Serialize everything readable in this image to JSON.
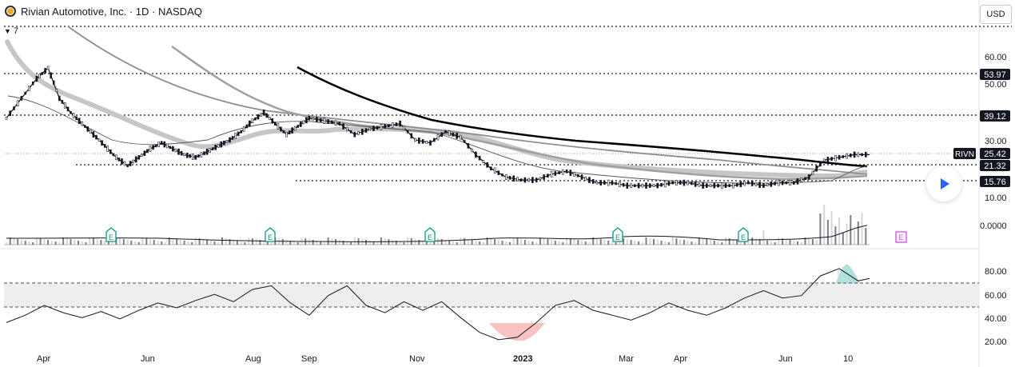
{
  "header": {
    "title": "Rivian Automotive, Inc. · 1D · NASDAQ",
    "indicator_count": "7"
  },
  "currency": "USD",
  "price_axis": {
    "ticks": [
      "60.00",
      "50.00",
      "30.00",
      "20.00",
      "10.00",
      "0.0000"
    ],
    "level_labels": [
      {
        "text": "53.97",
        "kind": "level"
      },
      {
        "text": "39.12",
        "kind": "level"
      },
      {
        "text": "21.32",
        "kind": "level"
      },
      {
        "text": "15.76",
        "kind": "level"
      }
    ],
    "last_price": {
      "symbol": "RIVN",
      "value": "25.42"
    }
  },
  "rsi_axis": {
    "ticks": [
      "80.00",
      "60.00",
      "40.00",
      "20.00"
    ]
  },
  "time_axis": {
    "labels": [
      "Apr",
      "Jun",
      "Aug",
      "Sep",
      "Nov",
      "2023",
      "Mar",
      "Apr",
      "Jun",
      "10"
    ]
  },
  "earnings_marker": "E",
  "colors": {
    "up_candle": "#131722",
    "ma_heavy": "#000000",
    "ma_gray": "#9e9e9e",
    "ribbon": "#c6c6c6",
    "rsi_line": "#131722",
    "rsi_band": "#eeeeee",
    "overbought_fill": "#26a69a",
    "oversold_fill": "#ef5350",
    "earnings_teal": "#089981",
    "earnings_future": "#e040fb",
    "play_button": "#2962ff"
  },
  "chart_data": {
    "type": "line",
    "price_scale_ticks": [
      60,
      50,
      30,
      20,
      10
    ],
    "horizontal_levels": [
      53.97,
      39.12,
      21.32,
      15.76
    ],
    "last_price": 25.42,
    "rsi_levels": {
      "upper": 70,
      "lower": 50
    },
    "rsi_ticks": [
      80,
      60,
      40,
      20
    ],
    "price_path": [
      [
        0,
        38
      ],
      [
        4,
        45
      ],
      [
        8,
        52
      ],
      [
        11,
        56
      ],
      [
        14,
        45
      ],
      [
        17,
        40
      ],
      [
        20,
        36
      ],
      [
        23,
        32
      ],
      [
        26,
        28
      ],
      [
        29,
        24
      ],
      [
        32,
        21
      ],
      [
        35,
        24
      ],
      [
        38,
        27
      ],
      [
        41,
        29
      ],
      [
        44,
        27
      ],
      [
        47,
        25
      ],
      [
        50,
        24
      ],
      [
        53,
        26
      ],
      [
        56,
        28
      ],
      [
        59,
        30
      ],
      [
        62,
        33
      ],
      [
        65,
        37
      ],
      [
        68,
        40
      ],
      [
        71,
        36
      ],
      [
        74,
        32
      ],
      [
        77,
        35
      ],
      [
        80,
        38
      ],
      [
        84,
        37
      ],
      [
        88,
        36
      ],
      [
        92,
        32
      ],
      [
        96,
        34
      ],
      [
        100,
        35
      ],
      [
        104,
        36
      ],
      [
        108,
        30
      ],
      [
        112,
        29
      ],
      [
        116,
        33
      ],
      [
        120,
        31
      ],
      [
        124,
        25
      ],
      [
        128,
        20
      ],
      [
        132,
        17
      ],
      [
        136,
        16
      ],
      [
        140,
        16
      ],
      [
        144,
        18
      ],
      [
        148,
        19
      ],
      [
        152,
        17
      ],
      [
        156,
        15
      ],
      [
        160,
        15
      ],
      [
        164,
        14
      ],
      [
        168,
        14
      ],
      [
        172,
        14
      ],
      [
        176,
        15
      ],
      [
        180,
        15
      ],
      [
        184,
        14
      ],
      [
        188,
        14
      ],
      [
        192,
        14
      ],
      [
        196,
        15
      ],
      [
        200,
        14
      ],
      [
        204,
        15
      ],
      [
        208,
        15
      ],
      [
        212,
        17
      ],
      [
        216,
        23
      ],
      [
        220,
        24
      ],
      [
        224,
        25
      ],
      [
        228,
        25
      ]
    ],
    "rsi_path": [
      [
        0,
        38
      ],
      [
        5,
        44
      ],
      [
        10,
        52
      ],
      [
        15,
        46
      ],
      [
        20,
        42
      ],
      [
        25,
        47
      ],
      [
        30,
        41
      ],
      [
        35,
        48
      ],
      [
        40,
        54
      ],
      [
        45,
        50
      ],
      [
        50,
        56
      ],
      [
        55,
        61
      ],
      [
        60,
        55
      ],
      [
        65,
        65
      ],
      [
        70,
        68
      ],
      [
        75,
        54
      ],
      [
        80,
        44
      ],
      [
        85,
        60
      ],
      [
        90,
        68
      ],
      [
        95,
        52
      ],
      [
        100,
        46
      ],
      [
        105,
        55
      ],
      [
        110,
        48
      ],
      [
        115,
        55
      ],
      [
        120,
        42
      ],
      [
        125,
        30
      ],
      [
        130,
        24
      ],
      [
        135,
        26
      ],
      [
        140,
        38
      ],
      [
        145,
        52
      ],
      [
        150,
        56
      ],
      [
        155,
        48
      ],
      [
        160,
        44
      ],
      [
        165,
        40
      ],
      [
        170,
        46
      ],
      [
        175,
        54
      ],
      [
        180,
        48
      ],
      [
        185,
        44
      ],
      [
        190,
        50
      ],
      [
        195,
        58
      ],
      [
        200,
        64
      ],
      [
        205,
        58
      ],
      [
        210,
        60
      ],
      [
        215,
        76
      ],
      [
        220,
        82
      ],
      [
        225,
        72
      ],
      [
        228,
        74
      ]
    ]
  }
}
